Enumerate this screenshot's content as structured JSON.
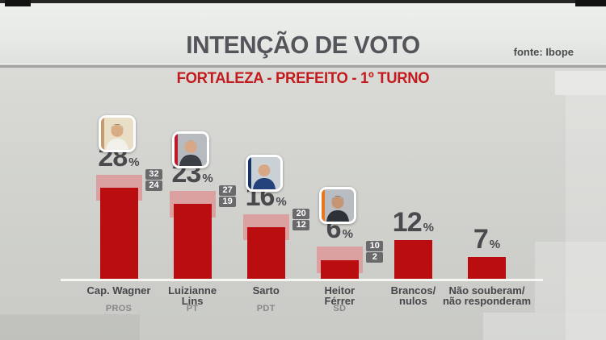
{
  "header": {
    "title": "INTENÇÃO DE VOTO",
    "source": "fonte: Ibope",
    "subtitle": "FORTALEZA - PREFEITO - 1º TURNO"
  },
  "chart_data": {
    "type": "bar",
    "title": "INTENÇÃO DE VOTO",
    "subtitle": "FORTALEZA - PREFEITO - 1º TURNO",
    "source": "fonte: Ibope",
    "unit": "%",
    "ylim": [
      0,
      35
    ],
    "grid": false,
    "legend_position": "none",
    "bars": [
      {
        "name": "Cap. Wagner",
        "name_lines": [
          "Cap. Wagner"
        ],
        "party": "PROS",
        "value": 28,
        "range_high": 32,
        "range_low": 24,
        "photo": {
          "accent": "#c79b6e",
          "bg": "#e9dfc6",
          "skin": "#d8ac85",
          "hair": "#4a3526",
          "torso": "#f2f0ea"
        }
      },
      {
        "name": "Luizianne Lins",
        "name_lines": [
          "Luizianne",
          "Lins"
        ],
        "party": "PT",
        "value": 23,
        "range_high": 27,
        "range_low": 19,
        "photo": {
          "accent": "#c0172c",
          "bg": "#b7babe",
          "skin": "#d8a886",
          "hair": "#c59c55",
          "torso": "#3c3f45"
        }
      },
      {
        "name": "Sarto",
        "name_lines": [
          "Sarto"
        ],
        "party": "PDT",
        "value": 16,
        "range_high": 20,
        "range_low": 12,
        "photo": {
          "accent": "#14356b",
          "bg": "#c9d0d6",
          "skin": "#d8a886",
          "hair": "#e8e6e2",
          "torso": "#24427c"
        }
      },
      {
        "name": "Heitor Férrer",
        "name_lines": [
          "Heitor",
          "Férrer"
        ],
        "party": "SD",
        "value": 6,
        "range_high": 10,
        "range_low": 2,
        "photo": {
          "accent": "#e8761e",
          "bg": "#b9bdc1",
          "skin": "#c69674",
          "hair": "#3a3a3c",
          "torso": "#2e3238"
        }
      },
      {
        "name": "Brancos/nulos",
        "name_lines": [
          "Brancos/",
          "nulos"
        ],
        "party": null,
        "value": 12
      },
      {
        "name": "Não souberam/não responderam",
        "name_lines": [
          "Não souberam/",
          "não responderam"
        ],
        "party": null,
        "value": 7
      }
    ],
    "colors": {
      "bar": "#b90d10",
      "range": "#dba0a0",
      "value_box": "#6a6a6d",
      "title": "#54545a",
      "subtitle_red": "#c31a1d",
      "baseline": "#f6f6f3"
    }
  }
}
